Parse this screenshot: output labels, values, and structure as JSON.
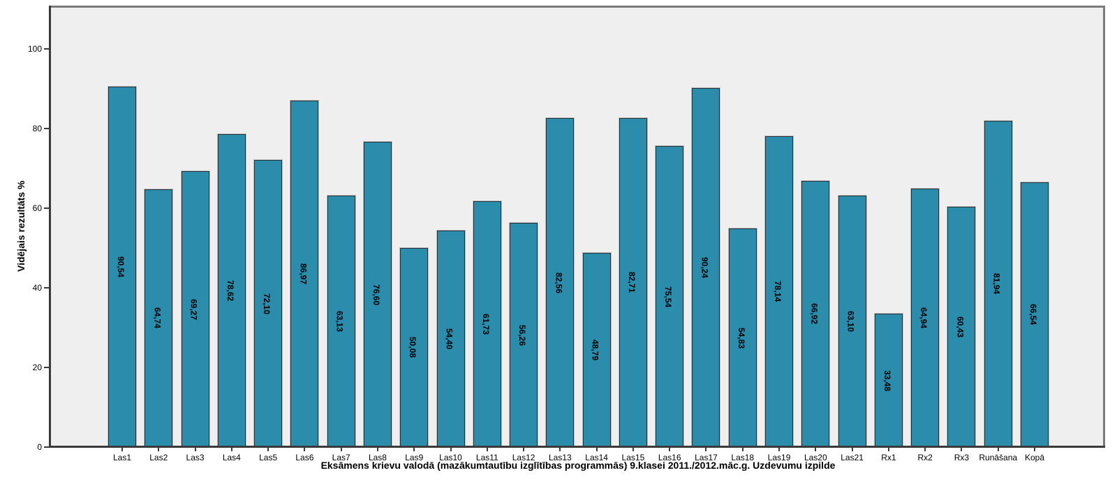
{
  "chart_data": {
    "type": "bar",
    "categories": [
      "Las1",
      "Las2",
      "Las3",
      "Las4",
      "Las5",
      "Las6",
      "Las7",
      "Las8",
      "Las9",
      "Las10",
      "Las11",
      "Las12",
      "Las13",
      "Las14",
      "Las15",
      "Las16",
      "Las17",
      "Las18",
      "Las19",
      "Las20",
      "Las21",
      "Rx1",
      "Rx2",
      "Rx3",
      "Runāšana",
      "Kopā"
    ],
    "values": [
      90.54,
      64.74,
      69.27,
      78.62,
      72.1,
      86.97,
      63.13,
      76.6,
      50.08,
      54.4,
      61.73,
      56.26,
      82.56,
      48.79,
      82.71,
      75.54,
      90.24,
      54.83,
      78.14,
      66.92,
      63.1,
      33.48,
      64.94,
      60.43,
      81.94,
      66.54
    ],
    "value_labels": [
      "90,54",
      "64,74",
      "69,27",
      "78,62",
      "72,10",
      "86,97",
      "63,13",
      "76,60",
      "50,08",
      "54,40",
      "61,73",
      "56,26",
      "82,56",
      "48,79",
      "82,71",
      "75,54",
      "90,24",
      "54,83",
      "78,14",
      "66,92",
      "63,10",
      "33,48",
      "64,94",
      "60,43",
      "81,94",
      "66,54"
    ],
    "title": "",
    "xlabel": "Eksāmens krievu valodā (mazākumtautību izglītības programmās) 9.klasei 2011./2012.māc.g. Uzdevumu izpilde",
    "ylabel": "Vidējais rezultāts %",
    "ylim": [
      0,
      110.8
    ],
    "yticks": [
      0,
      20,
      40,
      60,
      80,
      100
    ],
    "ytick_labels": [
      "0",
      "20",
      "40",
      "60",
      "80",
      "100"
    ],
    "grid": false,
    "legend": null,
    "value_label_rotation": "90deg-clockwise",
    "colors": {
      "bar_fill": "#2B8CAB",
      "bar_border": "#243238",
      "plot_background": "#EFEFEF",
      "outer_background": "#FFFFFF",
      "frame": "#7B7B7B",
      "axis": "#3A3A3A",
      "text": "#000000"
    }
  }
}
